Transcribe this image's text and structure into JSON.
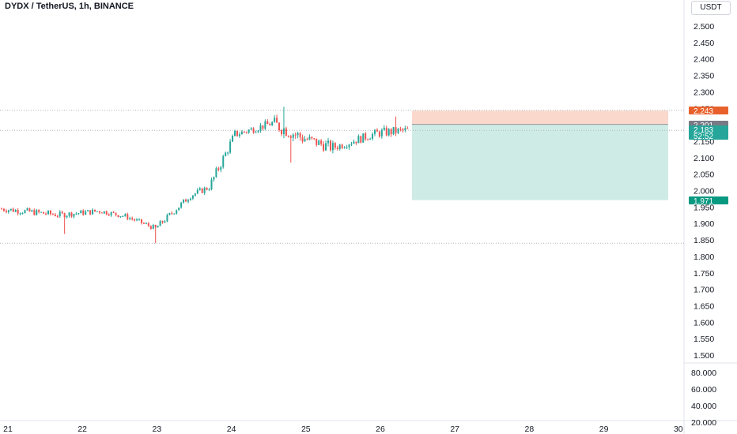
{
  "header": {
    "symbol_title": "DYDX / TetherUS, 1h, BINANCE",
    "currency_button": "USDT"
  },
  "chart_data": {
    "type": "candlestick",
    "title": "DYDX / TetherUS, 1h, BINANCE",
    "ylim": [
      1.455,
      2.55
    ],
    "price_ticks": [
      "2.500",
      "2.450",
      "2.400",
      "2.350",
      "2.300",
      "2.250",
      "2.200",
      "2.150",
      "2.100",
      "2.050",
      "2.000",
      "1.950",
      "1.900",
      "1.850",
      "1.800",
      "1.750",
      "1.700",
      "1.650",
      "1.600",
      "1.550",
      "1.500"
    ],
    "x_ticks": [
      "21",
      "22",
      "23",
      "24",
      "25",
      "26",
      "27",
      "28",
      "29",
      "30"
    ],
    "volume_ticks": [
      "80.000",
      "60.000",
      "40.000",
      "20.000"
    ],
    "colors": {
      "up": "#26a69a",
      "down": "#ef5350",
      "target_zone": "#cfebe6",
      "stop_zone": "#fad9cc"
    },
    "position": {
      "type": "long",
      "stop_price": 2.243,
      "entry_price": 2.201,
      "target_price": 1.971,
      "current_price": "2.183",
      "countdown": "52:52"
    },
    "price_tags": [
      {
        "label": "2.243",
        "value": 2.243,
        "color": "#e8612c"
      },
      {
        "label": "2.201",
        "value": 2.201,
        "color": "#787b86"
      },
      {
        "label": "2.183",
        "value": 2.183,
        "color": "#26a69a"
      },
      {
        "label": "1.971",
        "value": 1.971,
        "color": "#089981"
      }
    ],
    "dotted_levels": [
      2.244,
      2.183,
      1.84
    ],
    "segments": [
      {
        "from": 0,
        "to": 26,
        "start": 1.945,
        "end": 1.926,
        "amp": 0.01
      },
      {
        "from": 26,
        "to": 43,
        "start": 1.926,
        "end": 1.938,
        "amp": 0.009
      },
      {
        "from": 43,
        "to": 54,
        "start": 1.938,
        "end": 1.922,
        "amp": 0.008
      },
      {
        "from": 54,
        "to": 67,
        "start": 1.922,
        "end": 1.885,
        "amp": 0.008
      },
      {
        "from": 67,
        "to": 82,
        "start": 1.885,
        "end": 1.985,
        "amp": 0.01
      },
      {
        "from": 82,
        "to": 90,
        "start": 1.985,
        "end": 2.01,
        "amp": 0.01
      },
      {
        "from": 90,
        "to": 101,
        "start": 2.01,
        "end": 2.17,
        "amp": 0.015
      },
      {
        "from": 101,
        "to": 117,
        "start": 2.17,
        "end": 2.205,
        "amp": 0.012
      },
      {
        "from": 117,
        "to": 130,
        "start": 2.205,
        "end": 2.16,
        "amp": 0.022
      },
      {
        "from": 130,
        "to": 143,
        "start": 2.16,
        "end": 2.13,
        "amp": 0.018
      },
      {
        "from": 143,
        "to": 162,
        "start": 2.13,
        "end": 2.175,
        "amp": 0.013
      },
      {
        "from": 162,
        "to": 175,
        "start": 2.175,
        "end": 2.183,
        "amp": 0.015
      }
    ],
    "spikes": [
      {
        "index": 27,
        "low": 1.868
      },
      {
        "index": 66,
        "low": 1.84
      },
      {
        "index": 121,
        "high": 2.255
      },
      {
        "index": 124,
        "low": 2.085
      },
      {
        "index": 169,
        "high": 2.225
      }
    ]
  }
}
